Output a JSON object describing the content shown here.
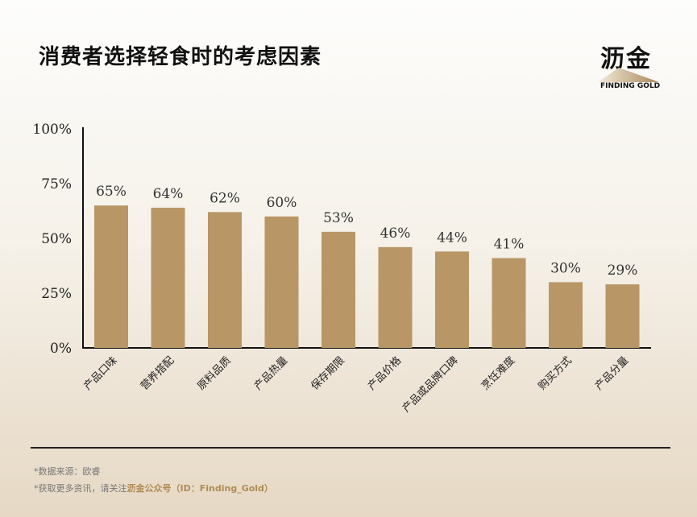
{
  "header": {
    "title": "消费者选择轻食时的考虑因素",
    "logo_cn": "沥金",
    "logo_en": "FINDING GOLD"
  },
  "colors": {
    "bar": "#b89665",
    "axis": "#111111",
    "accent": "#b08b55"
  },
  "chart_data": {
    "type": "bar",
    "categories": [
      "产品口味",
      "营养搭配",
      "原料品质",
      "产品热量",
      "保存期限",
      "产品价格",
      "产品或品牌口碑",
      "烹饪难度",
      "购买方式",
      "产品分量"
    ],
    "values": [
      65,
      64,
      62,
      60,
      53,
      46,
      44,
      41,
      30,
      29
    ],
    "data_labels": [
      "65%",
      "64%",
      "62%",
      "60%",
      "53%",
      "46%",
      "44%",
      "41%",
      "30%",
      "29%"
    ],
    "ylim": [
      0,
      100
    ],
    "yticks": [
      0,
      25,
      50,
      75,
      100
    ],
    "ytick_labels": [
      "0%",
      "25%",
      "50%",
      "75%",
      "100%"
    ],
    "grid": false
  },
  "footer": {
    "source": "*数据来源：欧睿",
    "follow_prefix": "*获取更多资讯，请关注",
    "follow_highlight": "沥金公众号（ID：Finding_Gold）"
  }
}
